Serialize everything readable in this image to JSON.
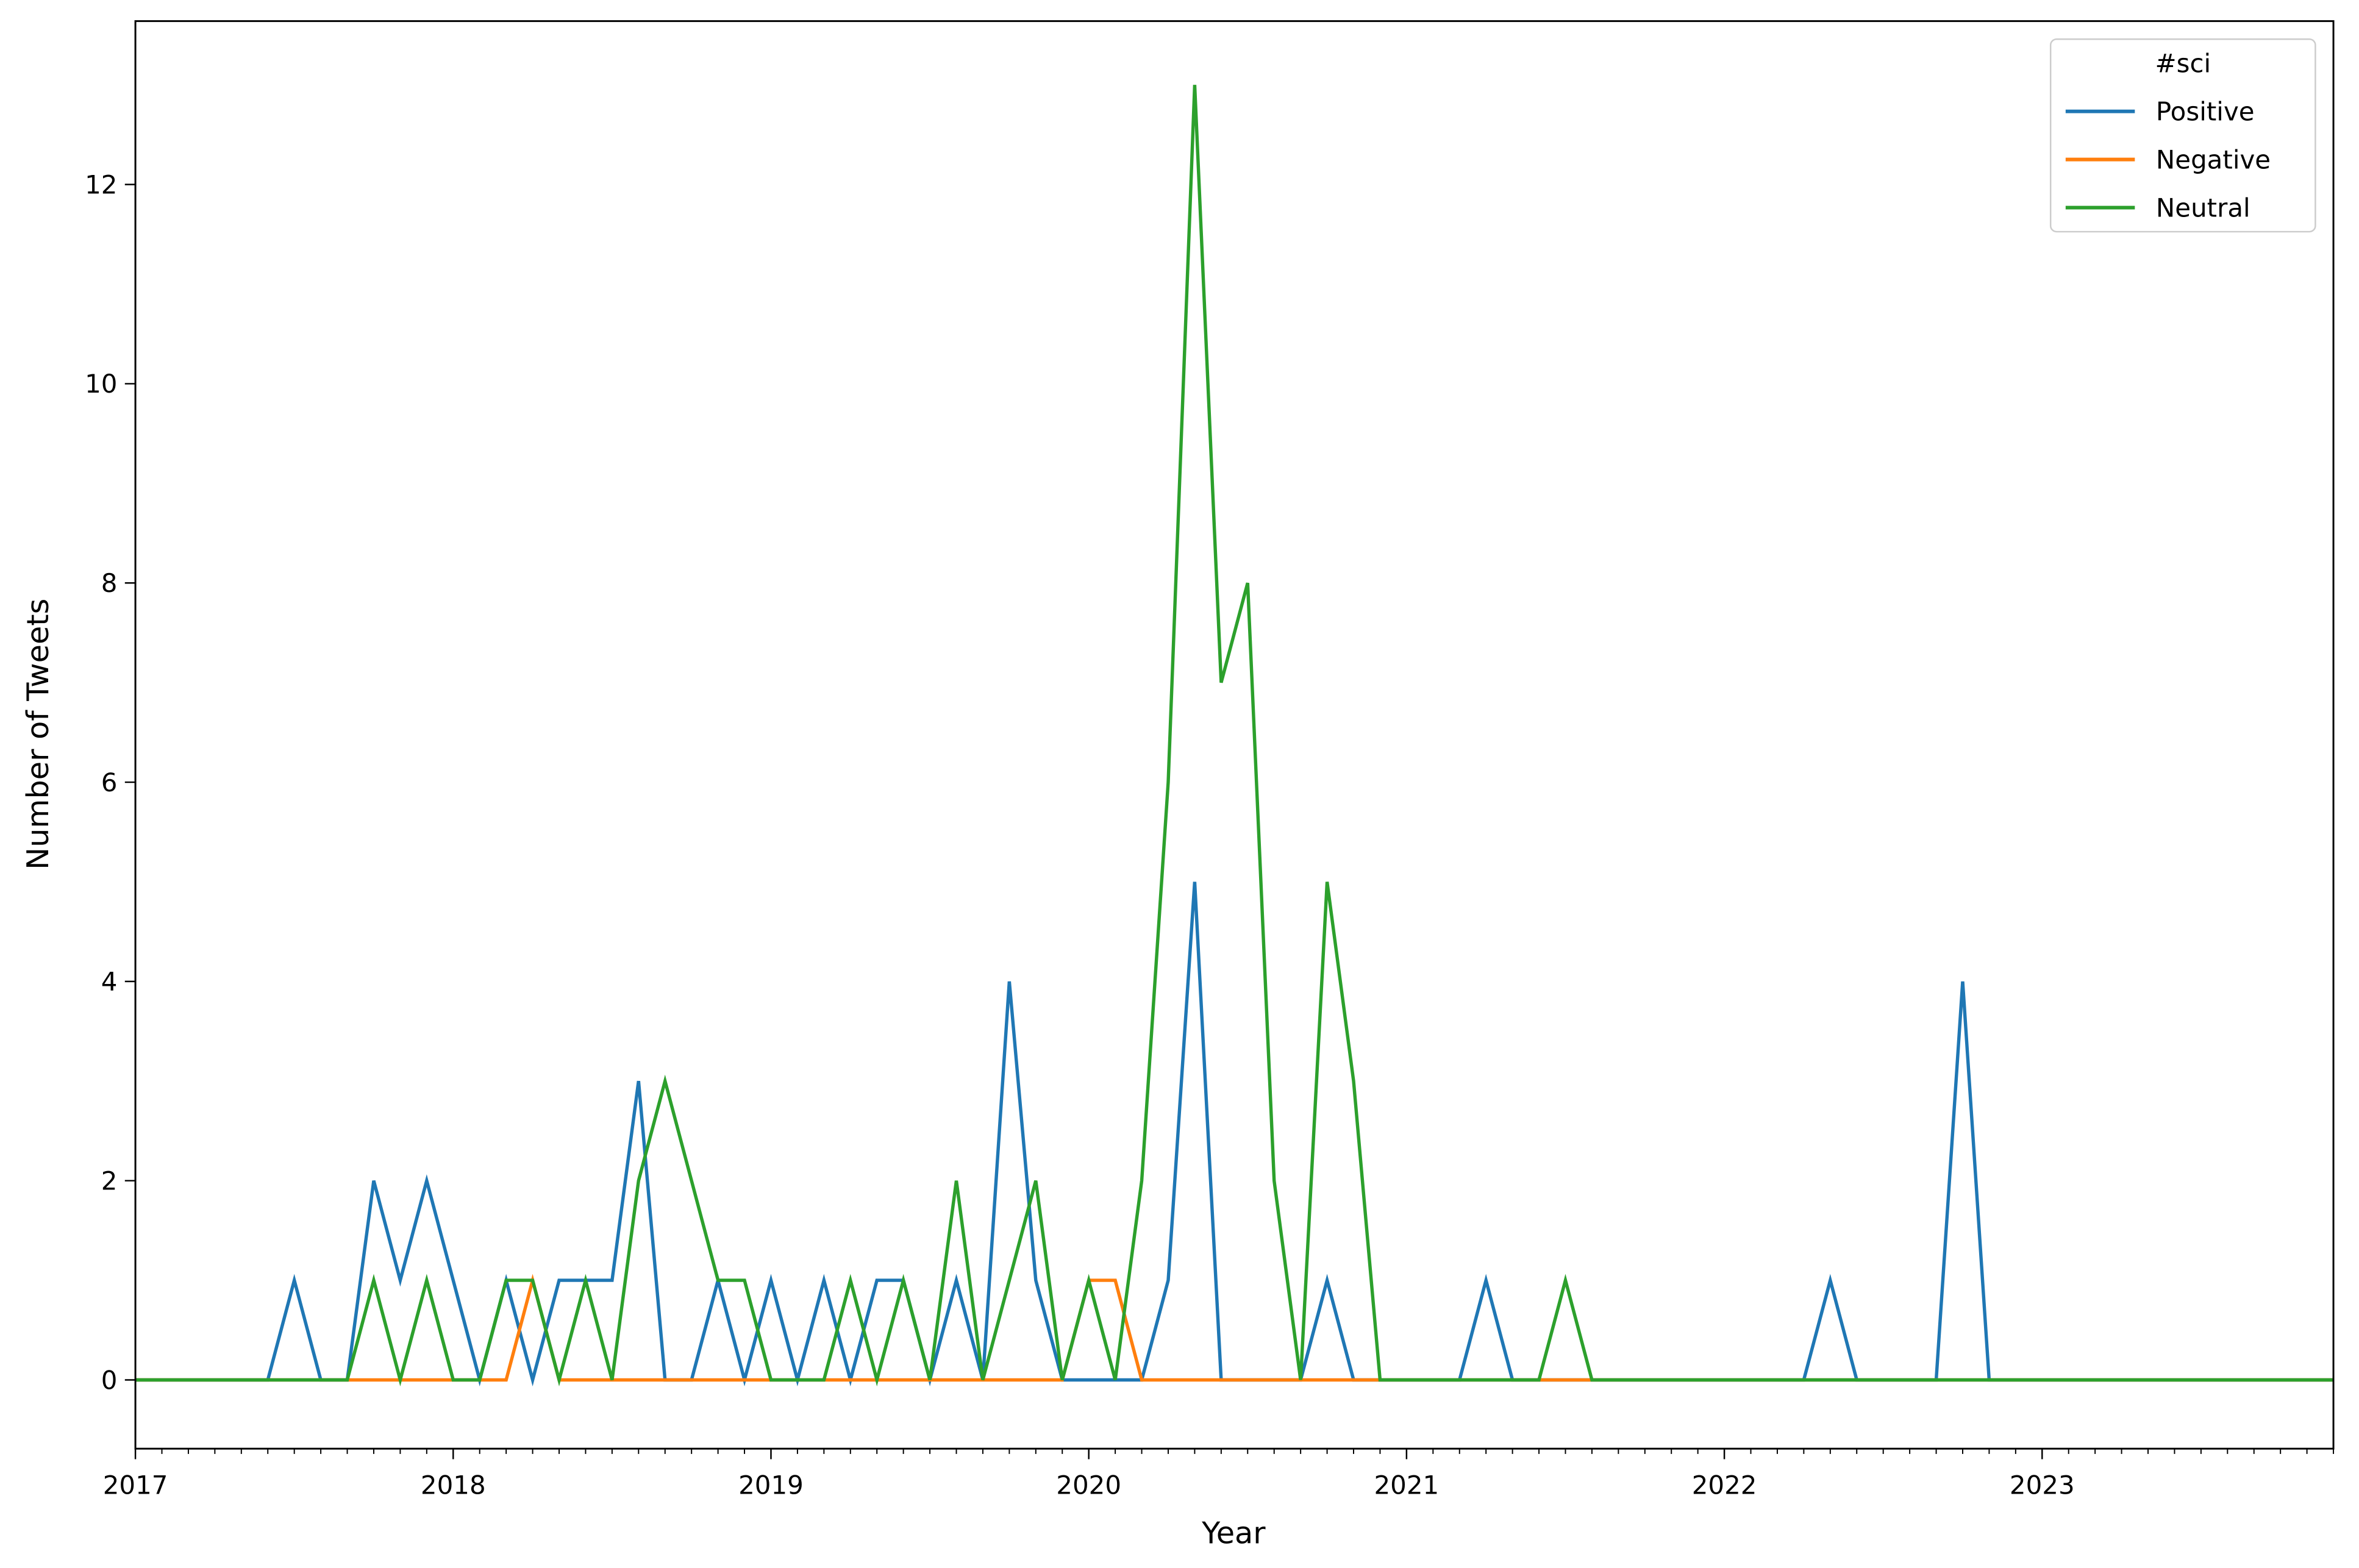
{
  "chart_data": {
    "type": "line",
    "xlabel": "Year",
    "ylabel": "Number of Tweets",
    "legend_title": "#sci",
    "legend_loc": "upper right",
    "x": [
      "2017-01",
      "2017-02",
      "2017-03",
      "2017-04",
      "2017-05",
      "2017-06",
      "2017-07",
      "2017-08",
      "2017-09",
      "2017-10",
      "2017-11",
      "2017-12",
      "2018-01",
      "2018-02",
      "2018-03",
      "2018-04",
      "2018-05",
      "2018-06",
      "2018-07",
      "2018-08",
      "2018-09",
      "2018-10",
      "2018-11",
      "2018-12",
      "2019-01",
      "2019-02",
      "2019-03",
      "2019-04",
      "2019-05",
      "2019-06",
      "2019-07",
      "2019-08",
      "2019-09",
      "2019-10",
      "2019-11",
      "2019-12",
      "2020-01",
      "2020-02",
      "2020-03",
      "2020-04",
      "2020-05",
      "2020-06",
      "2020-07",
      "2020-08",
      "2020-09",
      "2020-10",
      "2020-11",
      "2020-12",
      "2021-01",
      "2021-02",
      "2021-03",
      "2021-04",
      "2021-05",
      "2021-06",
      "2021-07",
      "2021-08",
      "2021-09",
      "2021-10",
      "2021-11",
      "2021-12",
      "2022-01",
      "2022-02",
      "2022-03",
      "2022-04",
      "2022-05",
      "2022-06",
      "2022-07",
      "2022-08",
      "2022-09",
      "2022-10",
      "2022-11",
      "2022-12",
      "2023-01",
      "2023-02",
      "2023-03",
      "2023-04",
      "2023-05",
      "2023-06",
      "2023-07",
      "2023-08",
      "2023-09",
      "2023-10",
      "2023-11",
      "2023-12"
    ],
    "series": [
      {
        "name": "Positive",
        "color": "#1f77b4",
        "values": [
          0,
          0,
          0,
          0,
          0,
          0,
          1,
          0,
          0,
          2,
          1,
          2,
          1,
          0,
          1,
          0,
          1,
          1,
          1,
          3,
          0,
          0,
          1,
          0,
          1,
          0,
          1,
          0,
          1,
          1,
          0,
          1,
          0,
          4,
          1,
          0,
          0,
          0,
          0,
          1,
          5,
          0,
          0,
          0,
          0,
          1,
          0,
          0,
          0,
          0,
          0,
          1,
          0,
          0,
          0,
          0,
          0,
          0,
          0,
          0,
          0,
          0,
          0,
          0,
          1,
          0,
          0,
          0,
          0,
          4,
          0,
          0,
          0,
          0,
          0,
          0,
          0,
          0,
          0,
          0,
          0,
          0,
          0,
          0
        ]
      },
      {
        "name": "Negative",
        "color": "#ff7f0e",
        "values": [
          0,
          0,
          0,
          0,
          0,
          0,
          0,
          0,
          0,
          0,
          0,
          0,
          0,
          0,
          0,
          1,
          0,
          0,
          0,
          0,
          0,
          0,
          0,
          0,
          0,
          0,
          0,
          0,
          0,
          0,
          0,
          0,
          0,
          0,
          0,
          0,
          1,
          1,
          0,
          0,
          0,
          0,
          0,
          0,
          0,
          0,
          0,
          0,
          0,
          0,
          0,
          0,
          0,
          0,
          0,
          0,
          0,
          0,
          0,
          0,
          0,
          0,
          0,
          0,
          0,
          0,
          0,
          0,
          0,
          0,
          0,
          0,
          0,
          0,
          0,
          0,
          0,
          0,
          0,
          0,
          0,
          0,
          0,
          0
        ]
      },
      {
        "name": "Neutral",
        "color": "#2ca02c",
        "values": [
          0,
          0,
          0,
          0,
          0,
          0,
          0,
          0,
          0,
          1,
          0,
          1,
          0,
          0,
          1,
          1,
          0,
          1,
          0,
          2,
          3,
          2,
          1,
          1,
          0,
          0,
          0,
          1,
          0,
          1,
          0,
          2,
          0,
          1,
          2,
          0,
          1,
          0,
          2,
          6,
          13,
          7,
          8,
          2,
          0,
          5,
          3,
          0,
          0,
          0,
          0,
          0,
          0,
          0,
          1,
          0,
          0,
          0,
          0,
          0,
          0,
          0,
          0,
          0,
          0,
          0,
          0,
          0,
          0,
          0,
          0,
          0,
          0,
          0,
          0,
          0,
          0,
          0,
          0,
          0,
          0,
          0,
          0,
          0
        ]
      }
    ],
    "xlim": [
      "2017-01",
      "2023-12"
    ],
    "xticks": [
      {
        "value": "2017-01",
        "label": "2017"
      },
      {
        "value": "2018-01",
        "label": "2018"
      },
      {
        "value": "2019-01",
        "label": "2019"
      },
      {
        "value": "2020-01",
        "label": "2020"
      },
      {
        "value": "2021-01",
        "label": "2021"
      },
      {
        "value": "2022-01",
        "label": "2022"
      },
      {
        "value": "2023-01",
        "label": "2023"
      }
    ],
    "ylim": [
      -0.69,
      13.64
    ],
    "yticks": [
      0,
      2,
      4,
      6,
      8,
      10,
      12
    ],
    "grid": false
  }
}
